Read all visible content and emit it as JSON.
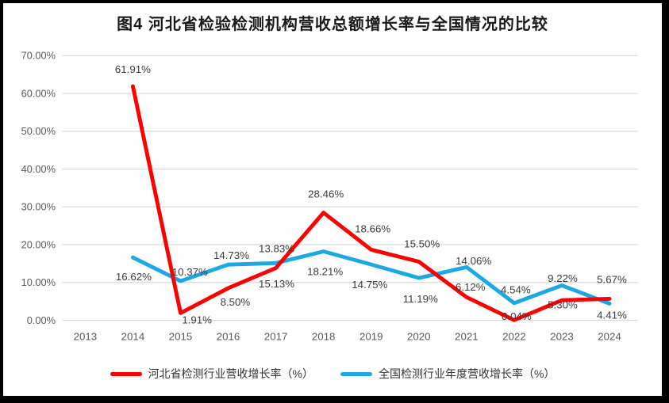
{
  "header": {
    "title": "图4 河北省检验检测机构营收总额增长率与全国情况的比较"
  },
  "colors": {
    "hebei_line": "#FE0000",
    "national_line": "#1BA8E4",
    "gridline": "#D9D9D9",
    "axis_text": "#595959",
    "data_label_text": "#3a3a3a",
    "frame_border": "#000000",
    "background": "#FFFFFF"
  },
  "chart_data": {
    "type": "line",
    "title": "图4 河北省检验检测机构营收总额增长率与全国情况的比较",
    "categories": [
      "2013",
      "2014",
      "2015",
      "2016",
      "2017",
      "2018",
      "2019",
      "2020",
      "2021",
      "2022",
      "2023",
      "2024"
    ],
    "x_axis": {
      "tick_labels": [
        "2013",
        "2014",
        "2015",
        "2016",
        "2017",
        "2018",
        "2019",
        "2020",
        "2021",
        "2022",
        "2023",
        "2024"
      ]
    },
    "y_axis": {
      "min": 0,
      "max": 70,
      "step": 10,
      "grid": true,
      "tick_labels": [
        "0.00%",
        "10.00%",
        "20.00%",
        "30.00%",
        "40.00%",
        "50.00%",
        "60.00%",
        "70.00%"
      ]
    },
    "legend": {
      "position": "bottom"
    },
    "series": [
      {
        "name": "河北省检测行业营收增长率（%）",
        "color": "#FE0000",
        "values": [
          null,
          61.91,
          1.91,
          8.5,
          13.83,
          28.46,
          18.66,
          15.5,
          6.12,
          0.04,
          5.3,
          5.67
        ],
        "labels": [
          null,
          "61.91%",
          "1.91%",
          "8.50%",
          "13.83%",
          "28.46%",
          "18.66%",
          "15.50%",
          "6.12%",
          "0.04%",
          "5.30%",
          "5.67%"
        ],
        "label_offsets": [
          [
            0,
            0
          ],
          [
            0,
            -22
          ],
          [
            21,
            9
          ],
          [
            9,
            18
          ],
          [
            1,
            -25
          ],
          [
            3,
            -24
          ],
          [
            2,
            -27
          ],
          [
            4,
            -23
          ],
          [
            5,
            -13
          ],
          [
            3,
            -5
          ],
          [
            1,
            6
          ],
          [
            3,
            -25
          ]
        ]
      },
      {
        "name": "全国检测行业年度营收增长率（%）",
        "color": "#1BA8E4",
        "values": [
          null,
          16.62,
          10.37,
          14.73,
          15.13,
          18.21,
          14.75,
          11.19,
          14.06,
          4.54,
          9.22,
          4.41
        ],
        "labels": [
          null,
          "16.62%",
          "10.37%",
          "14.73%",
          "15.13%",
          "18.21%",
          "14.75%",
          "11.19%",
          "14.06%",
          "4.54%",
          "9.22%",
          "4.41%"
        ],
        "label_offsets": [
          [
            0,
            0
          ],
          [
            1,
            25
          ],
          [
            12,
            -12
          ],
          [
            4,
            -12
          ],
          [
            1,
            27
          ],
          [
            2,
            26
          ],
          [
            -2,
            26
          ],
          [
            2,
            27
          ],
          [
            9,
            -8
          ],
          [
            2,
            -17
          ],
          [
            1,
            -9
          ],
          [
            3,
            15
          ]
        ]
      }
    ]
  }
}
